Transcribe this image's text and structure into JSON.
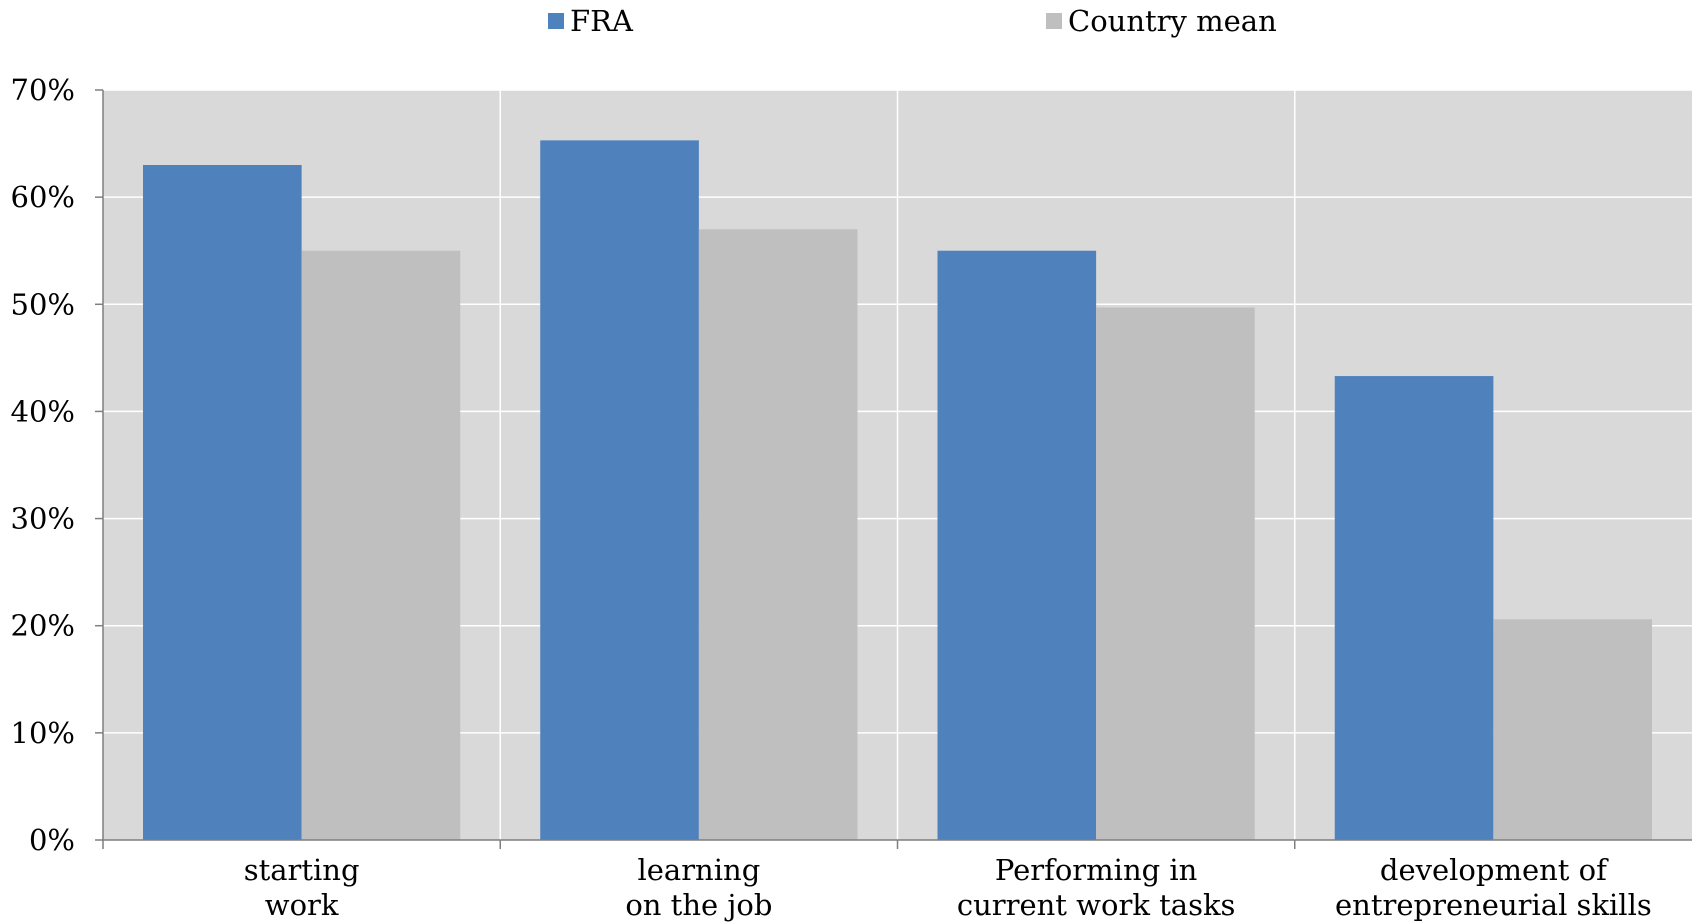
{
  "chart_data": {
    "type": "bar",
    "categories": [
      [
        "starting",
        "work"
      ],
      [
        "learning",
        "on the job"
      ],
      [
        "Performing in",
        "current work tasks"
      ],
      [
        "development of",
        "entrepreneurial skills"
      ]
    ],
    "series": [
      {
        "name": "FRA",
        "color": "#4f81bd",
        "values": [
          63,
          65.3,
          55,
          43.3
        ]
      },
      {
        "name": "Country mean",
        "color": "#bfbfbf",
        "values": [
          55,
          57,
          49.7,
          20.6
        ]
      }
    ],
    "y_ticks": [
      "0%",
      "10%",
      "20%",
      "30%",
      "40%",
      "50%",
      "60%",
      "70%"
    ],
    "ylim": [
      0,
      70
    ],
    "grid": true,
    "legend_position": "top-center",
    "plot_background": "#d9d9d9"
  }
}
